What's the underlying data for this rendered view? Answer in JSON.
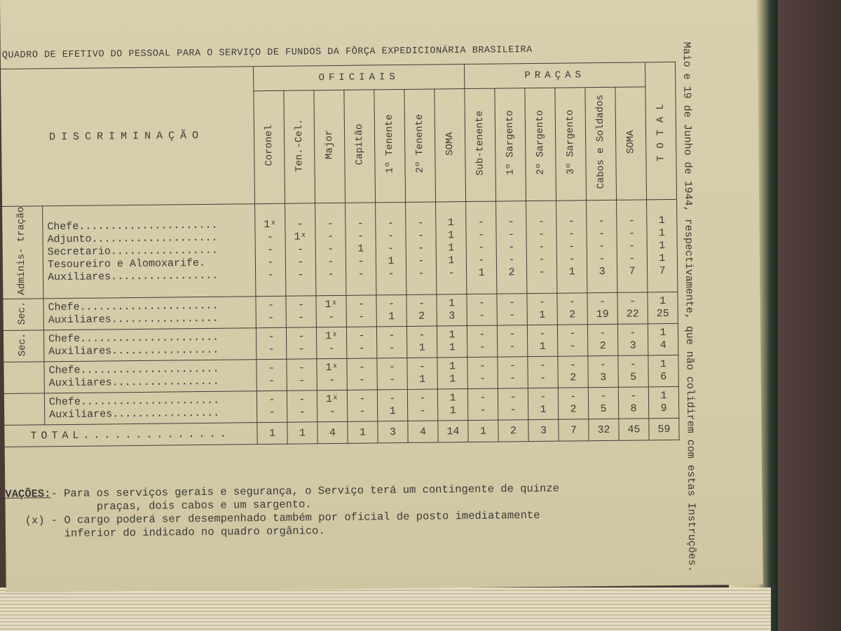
{
  "title": "QUADRO DE EFETIVO DO PESSOAL PARA O SERVIÇO DE FUNDOS DA FÔRÇA EXPEDICIONÁRIA BRASILEIRA",
  "margin_note": "Maio e 19 de Junho de 1944, respectivamente, que não colidirem com estas Instruções.",
  "table": {
    "discriminacao_header": "DISCRIMINAÇÃO",
    "group_oficiais": "OFICIAIS",
    "group_pracas": "PRAÇAS",
    "total_header": "TOTAL",
    "columns": [
      "Coronel",
      "Ten.-Cel.",
      "Major",
      "Capitão",
      "1º Tenente",
      "2º Tenente",
      "SOMA",
      "Sub-tenente",
      "1º Sargento",
      "2º Sargento",
      "3º Sargento",
      "Cabos e Soldados",
      "SOMA"
    ],
    "groups": [
      {
        "side": "Adminis- tração",
        "rows": [
          {
            "label": "Chefe......................",
            "values": [
              "1ˣ",
              "-",
              "-",
              "-",
              "-",
              "-",
              "1",
              "-",
              "-",
              "-",
              "-",
              "-",
              "-",
              "1"
            ]
          },
          {
            "label": "Adjunto....................",
            "values": [
              "-",
              "1ˣ",
              "-",
              "-",
              "-",
              "-",
              "1",
              "-",
              "-",
              "-",
              "-",
              "-",
              "-",
              "1"
            ]
          },
          {
            "label": "Secretario.................",
            "values": [
              "-",
              "-",
              "-",
              "1",
              "-",
              "-",
              "1",
              "-",
              "-",
              "-",
              "-",
              "-",
              "-",
              "1"
            ]
          },
          {
            "label": "Tesoureiro e Alomoxarife.",
            "values": [
              "-",
              "-",
              "-",
              "-",
              "1",
              "-",
              "1",
              "-",
              "-",
              "-",
              "-",
              "-",
              "-",
              "1"
            ]
          },
          {
            "label": "Auxiliares.................",
            "values": [
              "-",
              "-",
              "-",
              "-",
              "-",
              "-",
              "-",
              "1",
              "2",
              "-",
              "1",
              "3",
              "7",
              "7"
            ]
          }
        ]
      },
      {
        "side": "Sec.",
        "rows": [
          {
            "label": "Chefe......................",
            "values": [
              "-",
              "-",
              "1ˣ",
              "-",
              "-",
              "-",
              "1",
              "-",
              "-",
              "-",
              "-",
              "-",
              "-",
              "1"
            ]
          },
          {
            "label": "Auxiliares.................",
            "values": [
              "-",
              "-",
              "-",
              "-",
              "1",
              "2",
              "3",
              "-",
              "-",
              "1",
              "2",
              "19",
              "22",
              "25"
            ]
          }
        ]
      },
      {
        "side": "Sec.",
        "rows": [
          {
            "label": "Chefe......................",
            "values": [
              "-",
              "-",
              "1ˣ",
              "-",
              "-",
              "-",
              "1",
              "-",
              "-",
              "-",
              "-",
              "-",
              "-",
              "1"
            ]
          },
          {
            "label": "Auxiliares.................",
            "values": [
              "-",
              "-",
              "-",
              "-",
              "-",
              "1",
              "1",
              "-",
              "-",
              "1",
              "-",
              "2",
              "3",
              "4"
            ]
          }
        ]
      },
      {
        "side": "",
        "rows": [
          {
            "label": "Chefe......................",
            "values": [
              "-",
              "-",
              "1ˣ",
              "-",
              "-",
              "-",
              "1",
              "-",
              "-",
              "-",
              "-",
              "-",
              "-",
              "1"
            ]
          },
          {
            "label": "Auxiliares.................",
            "values": [
              "-",
              "-",
              "-",
              "-",
              "-",
              "1",
              "1",
              "-",
              "-",
              "-",
              "2",
              "3",
              "5",
              "6"
            ]
          }
        ]
      },
      {
        "side": "",
        "rows": [
          {
            "label": "Chefe......................",
            "values": [
              "-",
              "-",
              "1ˣ",
              "-",
              "-",
              "-",
              "1",
              "-",
              "-",
              "-",
              "-",
              "-",
              "-",
              "1"
            ]
          },
          {
            "label": "Auxiliares.................",
            "values": [
              "-",
              "-",
              "-",
              "-",
              "1",
              "-",
              "1",
              "-",
              "-",
              "1",
              "2",
              "5",
              "8",
              "9"
            ]
          }
        ]
      }
    ],
    "total_label": "TOTAL..............",
    "totals": [
      "1",
      "1",
      "4",
      "1",
      "3",
      "4",
      "14",
      "1",
      "2",
      "3",
      "7",
      "32",
      "45",
      "59"
    ]
  },
  "observations": {
    "heading": "VAÇÕES:",
    "line1": "- Para os serviços gerais e segurança, o Serviço terá um contingente de quinze",
    "line2": "              praças, dois cabos e um sargento.",
    "line3": "   (x) - O cargo poderá ser desempenhado também por oficial de posto imediatamente",
    "line4": "         inferior do indicado no quadro orgânico."
  }
}
